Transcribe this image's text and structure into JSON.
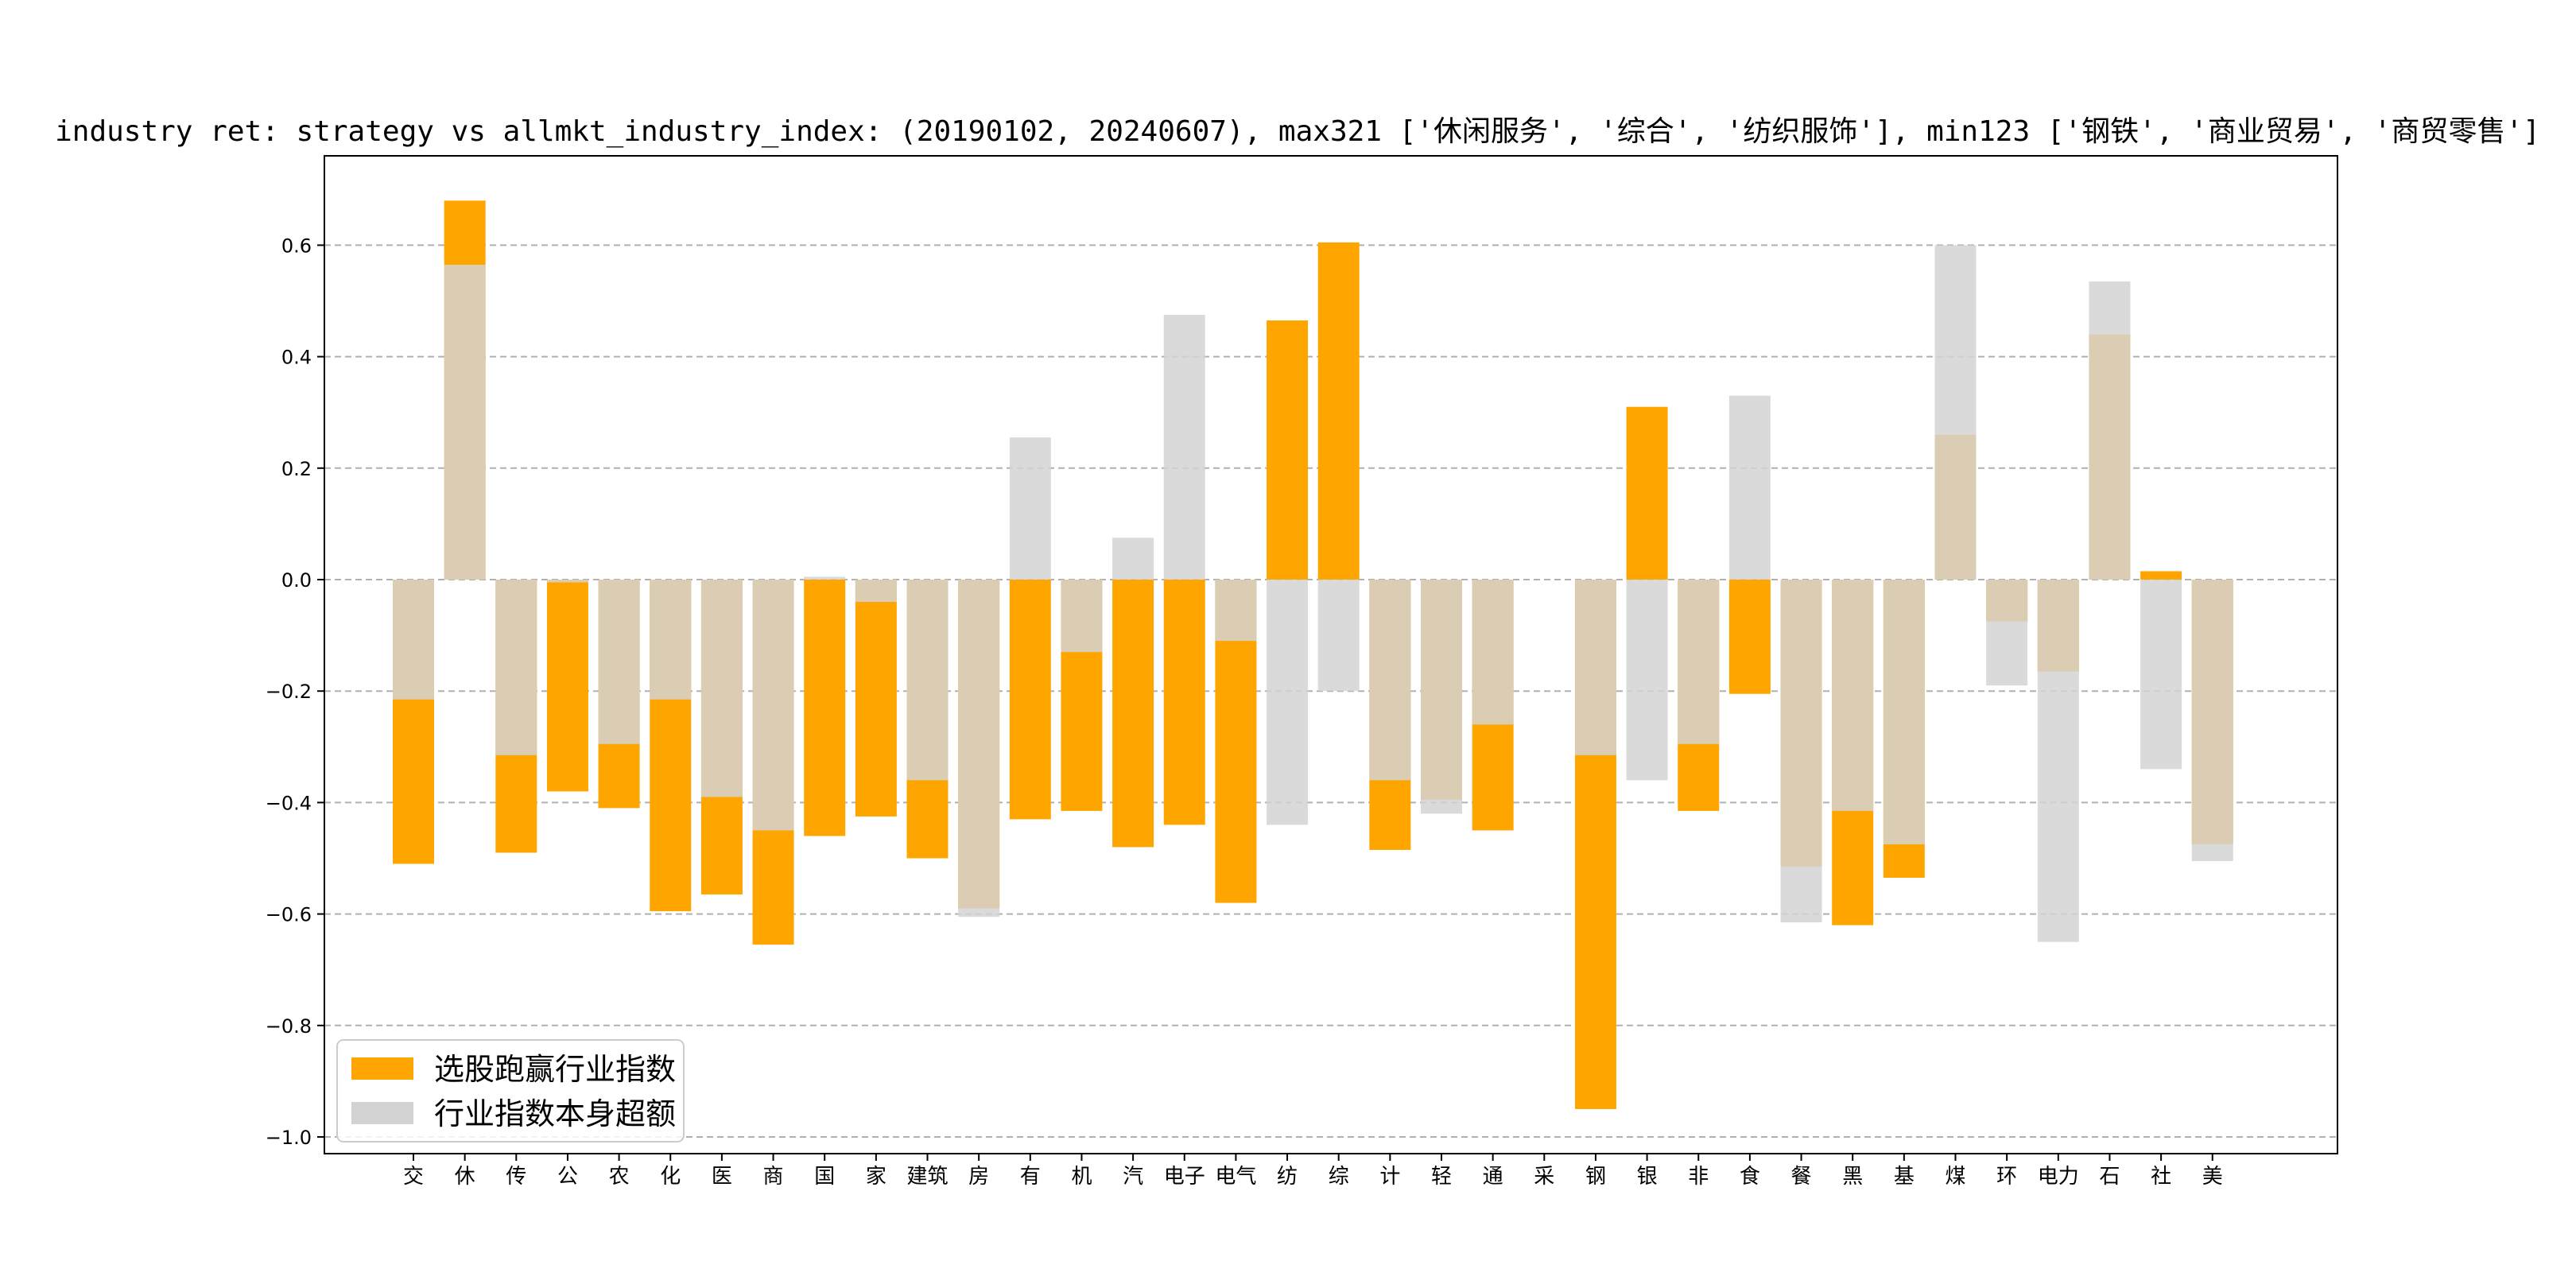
{
  "chart_data": {
    "type": "bar",
    "title": "industry ret: strategy vs allmkt_industry_index: (20190102, 20240607), max321 ['休闲服务', '综合', '纺织服饰'], min123 ['钢铁', '商业贸易', '商贸零售']",
    "xlabel": "",
    "ylabel": "",
    "ylim": [
      -1.02,
      0.72
    ],
    "yticks": [
      -1.0,
      -0.8,
      -0.6,
      -0.4,
      -0.2,
      0.0,
      0.2,
      0.4,
      0.6
    ],
    "ytick_labels": [
      "−1.0",
      "−0.8",
      "−0.6",
      "−0.4",
      "−0.2",
      "0.0",
      "0.2",
      "0.4",
      "0.6"
    ],
    "grid": "horizontal dashed",
    "legend_position": "lower-left",
    "categories": [
      "交",
      "休",
      "传",
      "公",
      "农",
      "化",
      "医",
      "商",
      "国",
      "家",
      "建筑",
      "房",
      "有",
      "机",
      "汽",
      "电子",
      "电气",
      "纺",
      "综",
      "计",
      "轻",
      "通",
      "采",
      "钢",
      "银",
      "非",
      "食",
      "餐",
      "黑",
      "基",
      "煤",
      "环",
      "电力",
      "石",
      "社",
      "美"
    ],
    "series": [
      {
        "name": "选股跑赢行业指数",
        "color": "#FFA500",
        "values": [
          -0.51,
          0.68,
          -0.49,
          -0.38,
          -0.41,
          -0.595,
          -0.565,
          -0.655,
          -0.46,
          -0.425,
          -0.5,
          -0.59,
          -0.43,
          -0.415,
          -0.48,
          -0.44,
          -0.58,
          0.465,
          0.605,
          -0.485,
          -0.395,
          -0.45,
          0.0,
          -0.95,
          0.31,
          -0.415,
          -0.205,
          -0.515,
          -0.62,
          -0.535,
          0.26,
          -0.075,
          -0.165,
          0.44,
          0.015,
          -0.475
        ]
      },
      {
        "name": "行业指数本身超额",
        "color": "#D3D3D3",
        "values": [
          -0.215,
          0.565,
          -0.315,
          -0.005,
          -0.295,
          -0.215,
          -0.39,
          -0.45,
          0.005,
          -0.04,
          -0.36,
          -0.605,
          0.255,
          -0.13,
          0.075,
          0.475,
          -0.11,
          -0.44,
          -0.2,
          -0.36,
          -0.42,
          -0.26,
          0.0,
          -0.315,
          -0.36,
          -0.295,
          0.33,
          -0.615,
          -0.415,
          -0.475,
          0.6,
          -0.19,
          -0.65,
          0.535,
          -0.34,
          -0.505
        ]
      }
    ]
  }
}
